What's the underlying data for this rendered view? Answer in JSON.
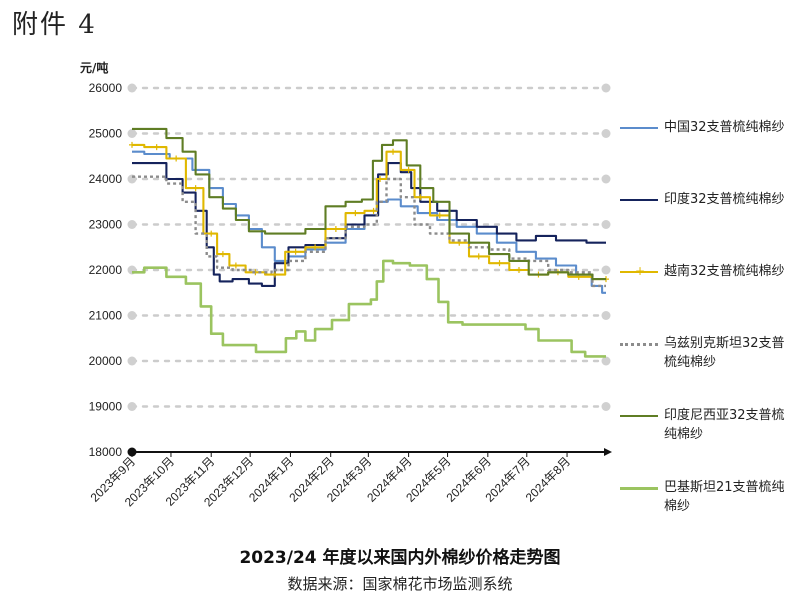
{
  "header": {
    "attachment_label": "附件 4"
  },
  "chart_data": {
    "type": "line",
    "title": "2023/24 年度以来国内外棉纱价格走势图",
    "source": "数据来源：国家棉花市场监测系统",
    "ylabel": "元/吨",
    "ylim": [
      18000,
      26000
    ],
    "yticks": [
      18000,
      19000,
      20000,
      21000,
      22000,
      23000,
      24000,
      25000,
      26000
    ],
    "xlim": [
      "2023-09-01",
      "2024-08-31"
    ],
    "x_tick_labels": [
      {
        "date": "2023-09-01",
        "label": "2023年9月"
      },
      {
        "date": "2023-10-01",
        "label": "2023年10月"
      },
      {
        "date": "2023-11-01",
        "label": "2023年11月"
      },
      {
        "date": "2023-12-01",
        "label": "2023年12月"
      },
      {
        "date": "2024-01-01",
        "label": "2024年1月"
      },
      {
        "date": "2024-02-01",
        "label": "2024年2月"
      },
      {
        "date": "2024-03-01",
        "label": "2024年3月"
      },
      {
        "date": "2024-04-01",
        "label": "2024年4月"
      },
      {
        "date": "2024-05-01",
        "label": "2024年5月"
      },
      {
        "date": "2024-06-01",
        "label": "2024年6月"
      },
      {
        "date": "2024-07-01",
        "label": "2024年7月"
      },
      {
        "date": "2024-08-01",
        "label": "2024年8月"
      }
    ],
    "grid": "horizontal-dotted",
    "legend": "right",
    "series": [
      {
        "name": "中国32支普梳纯棉纱",
        "color": "#5b8ccc",
        "style": "solid",
        "marker": "none",
        "points": [
          [
            "2023-09-01",
            24600
          ],
          [
            "2023-09-20",
            24550
          ],
          [
            "2023-10-10",
            24450
          ],
          [
            "2023-10-25",
            24200
          ],
          [
            "2023-11-05",
            23800
          ],
          [
            "2023-11-15",
            23450
          ],
          [
            "2023-11-25",
            23200
          ],
          [
            "2023-12-05",
            22900
          ],
          [
            "2023-12-15",
            22500
          ],
          [
            "2023-12-25",
            22200
          ],
          [
            "2024-01-05",
            22300
          ],
          [
            "2024-01-20",
            22450
          ],
          [
            "2024-02-05",
            22600
          ],
          [
            "2024-02-20",
            22900
          ],
          [
            "2024-03-05",
            23200
          ],
          [
            "2024-03-12",
            23500
          ],
          [
            "2024-03-20",
            23550
          ],
          [
            "2024-04-01",
            23400
          ],
          [
            "2024-04-15",
            23250
          ],
          [
            "2024-05-01",
            23100
          ],
          [
            "2024-05-15",
            22950
          ],
          [
            "2024-06-01",
            22800
          ],
          [
            "2024-06-15",
            22600
          ],
          [
            "2024-07-01",
            22400
          ],
          [
            "2024-07-15",
            22250
          ],
          [
            "2024-08-01",
            22100
          ],
          [
            "2024-08-15",
            21900
          ],
          [
            "2024-08-25",
            21650
          ],
          [
            "2024-08-31",
            21500
          ]
        ]
      },
      {
        "name": "印度32支普梳纯棉纱",
        "color": "#15235c",
        "style": "solid",
        "marker": "none",
        "points": [
          [
            "2023-09-01",
            24350
          ],
          [
            "2023-09-20",
            24350
          ],
          [
            "2023-10-05",
            24000
          ],
          [
            "2023-10-15",
            23700
          ],
          [
            "2023-10-25",
            23300
          ],
          [
            "2023-11-01",
            22500
          ],
          [
            "2023-11-05",
            21900
          ],
          [
            "2023-11-10",
            21750
          ],
          [
            "2023-11-25",
            21800
          ],
          [
            "2023-12-05",
            21700
          ],
          [
            "2023-12-15",
            21650
          ],
          [
            "2023-12-25",
            22150
          ],
          [
            "2024-01-05",
            22500
          ],
          [
            "2024-01-20",
            22550
          ],
          [
            "2024-02-05",
            22700
          ],
          [
            "2024-02-20",
            23000
          ],
          [
            "2024-03-05",
            23200
          ],
          [
            "2024-03-12",
            24100
          ],
          [
            "2024-03-20",
            24350
          ],
          [
            "2024-04-01",
            24150
          ],
          [
            "2024-04-05",
            23800
          ],
          [
            "2024-04-15",
            23500
          ],
          [
            "2024-05-01",
            23300
          ],
          [
            "2024-05-15",
            23100
          ],
          [
            "2024-06-01",
            22950
          ],
          [
            "2024-06-15",
            22800
          ],
          [
            "2024-07-01",
            22650
          ],
          [
            "2024-07-15",
            22750
          ],
          [
            "2024-08-01",
            22650
          ],
          [
            "2024-08-31",
            22600
          ]
        ]
      },
      {
        "name": "越南32支普梳纯棉纱",
        "color": "#e0b800",
        "style": "solid",
        "marker": "plus",
        "points": [
          [
            "2023-09-01",
            24750
          ],
          [
            "2023-09-20",
            24700
          ],
          [
            "2023-10-05",
            24450
          ],
          [
            "2023-10-20",
            23800
          ],
          [
            "2023-11-01",
            22800
          ],
          [
            "2023-11-10",
            22350
          ],
          [
            "2023-11-20",
            22100
          ],
          [
            "2023-12-05",
            21950
          ],
          [
            "2023-12-20",
            21900
          ],
          [
            "2024-01-05",
            22400
          ],
          [
            "2024-01-20",
            22500
          ],
          [
            "2024-02-05",
            22900
          ],
          [
            "2024-02-20",
            23250
          ],
          [
            "2024-03-05",
            23300
          ],
          [
            "2024-03-10",
            24000
          ],
          [
            "2024-03-20",
            24600
          ],
          [
            "2024-04-01",
            24200
          ],
          [
            "2024-04-10",
            23600
          ],
          [
            "2024-04-25",
            23200
          ],
          [
            "2024-05-10",
            22600
          ],
          [
            "2024-05-25",
            22300
          ],
          [
            "2024-06-10",
            22150
          ],
          [
            "2024-06-25",
            22000
          ],
          [
            "2024-07-10",
            21900
          ],
          [
            "2024-07-25",
            21950
          ],
          [
            "2024-08-10",
            21850
          ],
          [
            "2024-08-31",
            21800
          ]
        ]
      },
      {
        "name": "乌兹别克斯坦32支普梳纯棉纱",
        "color": "#8c8c8c",
        "style": "dashed",
        "marker": "none",
        "points": [
          [
            "2023-09-01",
            24050
          ],
          [
            "2023-09-20",
            24050
          ],
          [
            "2023-10-05",
            23900
          ],
          [
            "2023-10-15",
            23500
          ],
          [
            "2023-10-25",
            22800
          ],
          [
            "2023-11-01",
            22300
          ],
          [
            "2023-11-10",
            22050
          ],
          [
            "2023-11-25",
            22000
          ],
          [
            "2023-12-10",
            21950
          ],
          [
            "2023-12-25",
            22000
          ],
          [
            "2024-01-05",
            22200
          ],
          [
            "2024-01-20",
            22400
          ],
          [
            "2024-02-05",
            22700
          ],
          [
            "2024-02-20",
            22950
          ],
          [
            "2024-03-05",
            23000
          ],
          [
            "2024-03-10",
            23500
          ],
          [
            "2024-03-20",
            24000
          ],
          [
            "2024-04-01",
            23600
          ],
          [
            "2024-04-10",
            23000
          ],
          [
            "2024-04-25",
            22800
          ],
          [
            "2024-05-10",
            22650
          ],
          [
            "2024-05-25",
            22500
          ],
          [
            "2024-06-10",
            22450
          ],
          [
            "2024-06-25",
            22250
          ],
          [
            "2024-07-10",
            22200
          ],
          [
            "2024-07-25",
            22000
          ],
          [
            "2024-08-10",
            21950
          ],
          [
            "2024-08-31",
            21650
          ]
        ]
      },
      {
        "name": "印度尼西亚32支普梳纯棉纱",
        "color": "#5f7d24",
        "style": "solid",
        "marker": "none",
        "points": [
          [
            "2023-09-01",
            25100
          ],
          [
            "2023-09-20",
            25100
          ],
          [
            "2023-10-05",
            24900
          ],
          [
            "2023-10-15",
            24600
          ],
          [
            "2023-10-25",
            24100
          ],
          [
            "2023-11-05",
            23600
          ],
          [
            "2023-11-15",
            23350
          ],
          [
            "2023-11-25",
            23100
          ],
          [
            "2023-12-05",
            22850
          ],
          [
            "2023-12-20",
            22800
          ],
          [
            "2024-01-05",
            22800
          ],
          [
            "2024-01-20",
            22900
          ],
          [
            "2024-02-05",
            23400
          ],
          [
            "2024-02-20",
            23500
          ],
          [
            "2024-03-01",
            23550
          ],
          [
            "2024-03-08",
            24400
          ],
          [
            "2024-03-15",
            24750
          ],
          [
            "2024-03-25",
            24850
          ],
          [
            "2024-04-05",
            24300
          ],
          [
            "2024-04-15",
            23800
          ],
          [
            "2024-04-25",
            23500
          ],
          [
            "2024-05-10",
            22800
          ],
          [
            "2024-05-25",
            22600
          ],
          [
            "2024-06-10",
            22350
          ],
          [
            "2024-06-25",
            22200
          ],
          [
            "2024-07-10",
            21900
          ],
          [
            "2024-07-25",
            21950
          ],
          [
            "2024-08-10",
            21900
          ],
          [
            "2024-08-31",
            21800
          ]
        ]
      },
      {
        "name": "巴基斯坦21支普梳纯棉纱",
        "color": "#9bc460",
        "style": "solid",
        "marker": "none",
        "width": 2.6,
        "points": [
          [
            "2023-09-01",
            21950
          ],
          [
            "2023-09-20",
            22050
          ],
          [
            "2023-10-05",
            21850
          ],
          [
            "2023-10-20",
            21700
          ],
          [
            "2023-10-28",
            21200
          ],
          [
            "2023-11-05",
            20600
          ],
          [
            "2023-11-15",
            20350
          ],
          [
            "2023-12-01",
            20350
          ],
          [
            "2023-12-10",
            20200
          ],
          [
            "2023-12-25",
            20200
          ],
          [
            "2024-01-01",
            20500
          ],
          [
            "2024-01-10",
            20650
          ],
          [
            "2024-01-15",
            20450
          ],
          [
            "2024-01-25",
            20700
          ],
          [
            "2024-02-10",
            20900
          ],
          [
            "2024-02-20",
            21250
          ],
          [
            "2024-03-01",
            21250
          ],
          [
            "2024-03-05",
            21350
          ],
          [
            "2024-03-10",
            21750
          ],
          [
            "2024-03-15",
            22200
          ],
          [
            "2024-03-25",
            22150
          ],
          [
            "2024-04-10",
            22100
          ],
          [
            "2024-04-20",
            21800
          ],
          [
            "2024-04-28",
            21300
          ],
          [
            "2024-05-05",
            20850
          ],
          [
            "2024-05-20",
            20800
          ],
          [
            "2024-06-10",
            20800
          ],
          [
            "2024-06-25",
            20800
          ],
          [
            "2024-07-05",
            20700
          ],
          [
            "2024-07-15",
            20450
          ],
          [
            "2024-07-30",
            20450
          ],
          [
            "2024-08-10",
            20200
          ],
          [
            "2024-08-20",
            20100
          ],
          [
            "2024-08-31",
            20100
          ]
        ]
      }
    ]
  }
}
